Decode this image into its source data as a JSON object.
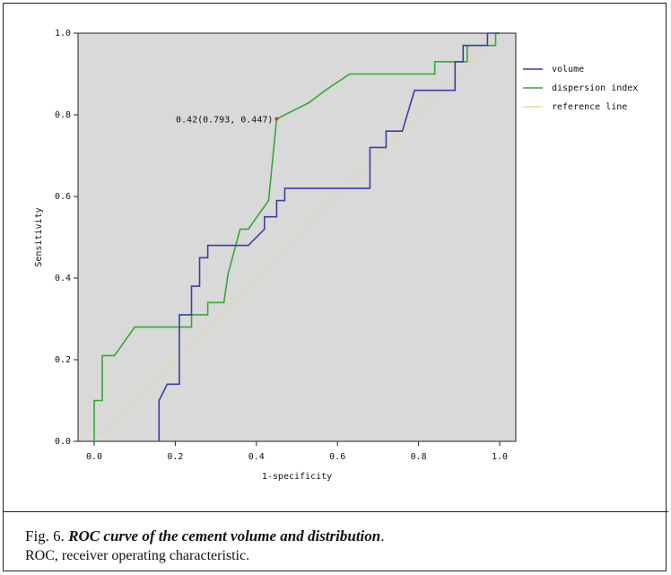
{
  "caption": {
    "figure_label": "Fig. 6.",
    "title": "ROC curve of the cement volume and distribution",
    "title_end": ".",
    "note": "ROC, receiver operating characteristic."
  },
  "colors": {
    "plot_bg": "#d9d9d9",
    "volume": "#3a3fa0",
    "dispersion": "#36a836",
    "reference": "#e6d8a8",
    "point": "#d23b2b"
  },
  "chart_data": {
    "type": "line",
    "xlabel": "1-specificity",
    "ylabel": "Sensitivity",
    "xlim": [
      0.0,
      1.0
    ],
    "ylim": [
      0.0,
      1.0
    ],
    "xticks": [
      "0.0",
      "0.2",
      "0.4",
      "0.6",
      "0.8",
      "1.0"
    ],
    "yticks": [
      "0.0",
      "0.2",
      "0.4",
      "0.6",
      "0.8",
      "1.0"
    ],
    "grid": false,
    "legend": "right",
    "series": [
      {
        "name": "volume",
        "color": "#3a3fa0",
        "points": [
          [
            0.16,
            0.0
          ],
          [
            0.16,
            0.1
          ],
          [
            0.18,
            0.14
          ],
          [
            0.21,
            0.14
          ],
          [
            0.21,
            0.31
          ],
          [
            0.24,
            0.31
          ],
          [
            0.24,
            0.38
          ],
          [
            0.26,
            0.38
          ],
          [
            0.26,
            0.45
          ],
          [
            0.28,
            0.45
          ],
          [
            0.28,
            0.48
          ],
          [
            0.38,
            0.48
          ],
          [
            0.42,
            0.52
          ],
          [
            0.42,
            0.55
          ],
          [
            0.45,
            0.55
          ],
          [
            0.45,
            0.59
          ],
          [
            0.47,
            0.59
          ],
          [
            0.47,
            0.62
          ],
          [
            0.68,
            0.62
          ],
          [
            0.68,
            0.72
          ],
          [
            0.72,
            0.72
          ],
          [
            0.72,
            0.76
          ],
          [
            0.76,
            0.76
          ],
          [
            0.79,
            0.86
          ],
          [
            0.89,
            0.86
          ],
          [
            0.89,
            0.93
          ],
          [
            0.91,
            0.93
          ],
          [
            0.91,
            0.97
          ],
          [
            0.97,
            0.97
          ],
          [
            0.97,
            1.0
          ],
          [
            1.0,
            1.0
          ]
        ]
      },
      {
        "name": "dispersion index",
        "color": "#36a836",
        "points": [
          [
            0.0,
            0.0
          ],
          [
            0.0,
            0.1
          ],
          [
            0.02,
            0.1
          ],
          [
            0.02,
            0.21
          ],
          [
            0.05,
            0.21
          ],
          [
            0.1,
            0.28
          ],
          [
            0.24,
            0.28
          ],
          [
            0.24,
            0.31
          ],
          [
            0.28,
            0.31
          ],
          [
            0.28,
            0.34
          ],
          [
            0.32,
            0.34
          ],
          [
            0.33,
            0.41
          ],
          [
            0.36,
            0.52
          ],
          [
            0.38,
            0.52
          ],
          [
            0.43,
            0.59
          ],
          [
            0.44,
            0.69
          ],
          [
            0.45,
            0.79
          ],
          [
            0.53,
            0.83
          ],
          [
            0.57,
            0.86
          ],
          [
            0.63,
            0.9
          ],
          [
            0.84,
            0.9
          ],
          [
            0.84,
            0.93
          ],
          [
            0.92,
            0.93
          ],
          [
            0.92,
            0.97
          ],
          [
            0.99,
            0.97
          ],
          [
            0.99,
            1.0
          ],
          [
            1.0,
            1.0
          ]
        ]
      },
      {
        "name": "reference line",
        "color": "#e6d8a8",
        "points": [
          [
            0.0,
            0.0
          ],
          [
            1.0,
            1.0
          ]
        ]
      }
    ],
    "annotation": {
      "text": "0.42(0.793, 0.447)",
      "x": 0.45,
      "y": 0.79
    }
  }
}
